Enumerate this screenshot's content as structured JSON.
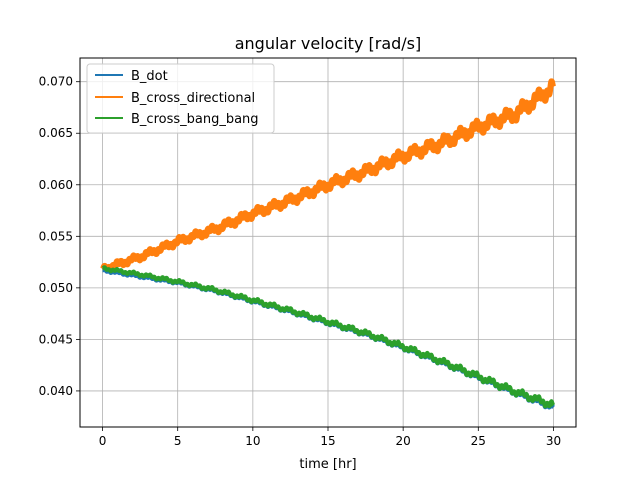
{
  "chart_data": {
    "type": "line",
    "title": "angular velocity [rad/s]",
    "xlabel": "time [hr]",
    "ylabel": "",
    "xlim": [
      -1.5,
      31.5
    ],
    "ylim": [
      0.0365,
      0.0723
    ],
    "xticks": [
      0,
      5,
      10,
      15,
      20,
      25,
      30
    ],
    "yticks": [
      0.04,
      0.045,
      0.05,
      0.055,
      0.06,
      0.065,
      0.07
    ],
    "grid": true,
    "legend_position": "upper-left",
    "series": [
      {
        "name": "B_dot",
        "color": "#1f77b4",
        "x": [
          0,
          2.5,
          5,
          7.5,
          10,
          12.5,
          15,
          17.5,
          20,
          22.5,
          25,
          27.5,
          30
        ],
        "y": [
          0.0517,
          0.0511,
          0.0505,
          0.0497,
          0.0487,
          0.0477,
          0.0466,
          0.0455,
          0.0442,
          0.0428,
          0.0413,
          0.0398,
          0.0384
        ],
        "oscillation": 0.0003
      },
      {
        "name": "B_cross_directional",
        "color": "#ff7f0e",
        "x": [
          0,
          2.5,
          5,
          7.5,
          10,
          12.5,
          15,
          17.5,
          20,
          22.5,
          25,
          27.5,
          30
        ],
        "y": [
          0.0518,
          0.053,
          0.0545,
          0.0557,
          0.0572,
          0.0585,
          0.06,
          0.0613,
          0.0628,
          0.064,
          0.0656,
          0.0669,
          0.0695
        ],
        "oscillation": 0.0008
      },
      {
        "name": "B_cross_bang_bang",
        "color": "#2ca02c",
        "x": [
          0,
          2.5,
          5,
          7.5,
          10,
          12.5,
          15,
          17.5,
          20,
          22.5,
          25,
          27.5,
          30
        ],
        "y": [
          0.0519,
          0.0513,
          0.0506,
          0.0498,
          0.0488,
          0.0478,
          0.0467,
          0.0456,
          0.0443,
          0.0429,
          0.0414,
          0.0399,
          0.0386
        ],
        "oscillation": 0.0004
      }
    ]
  }
}
